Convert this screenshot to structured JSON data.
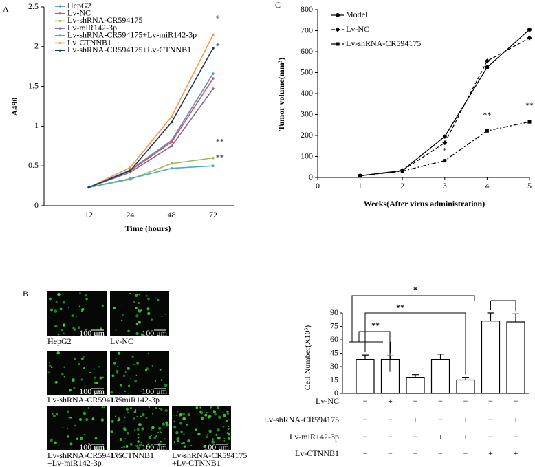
{
  "chart_data": [
    {
      "type": "line",
      "panel": "A",
      "x_label": "Time (hours)",
      "y_label": "A490",
      "categories": [
        "12",
        "24",
        "48",
        "72"
      ],
      "ylim": [
        0,
        2.5
      ],
      "yticks": [
        0,
        0.5,
        1,
        1.5,
        2,
        2.5
      ],
      "series": [
        {
          "name": "HepG2",
          "color": "#4a8fd4",
          "values": [
            0.23,
            0.45,
            0.82,
            1.66
          ]
        },
        {
          "name": "Lv-NC",
          "color": "#d9534f",
          "values": [
            0.23,
            0.44,
            0.8,
            1.6
          ]
        },
        {
          "name": "Lv-shRNA-CR594175",
          "color": "#9bbb59",
          "values": [
            0.23,
            0.33,
            0.53,
            0.6
          ]
        },
        {
          "name": "Lv-miR142-3p",
          "color": "#8064a2",
          "values": [
            0.23,
            0.42,
            0.75,
            1.47
          ]
        },
        {
          "name": "Lv-shRNA-CR594175+Lv-miR142-3p",
          "color": "#4bacc6",
          "values": [
            0.23,
            0.34,
            0.47,
            0.5
          ]
        },
        {
          "name": "Lv-CTNNB1",
          "color": "#f79646",
          "values": [
            0.23,
            0.48,
            1.12,
            2.15
          ]
        },
        {
          "name": "Lv-shRNA-CR594175+Lv-CTNNB1",
          "color": "#1f3864",
          "values": [
            0.23,
            0.44,
            1.05,
            1.98
          ]
        }
      ],
      "annotations": [
        {
          "text": "*",
          "x": "72",
          "y": 2.35
        },
        {
          "text": "*",
          "x": "72",
          "y": 2.0
        },
        {
          "text": "**",
          "x": "72",
          "y": 0.8
        },
        {
          "text": "**",
          "x": "72",
          "y": 0.6
        }
      ]
    },
    {
      "type": "line",
      "panel": "C",
      "x_label": "Weeks(After virus administration)",
      "y_label": "Tumor volume(mm³)",
      "x": [
        1,
        2,
        3,
        4,
        5
      ],
      "xlim": [
        0,
        5
      ],
      "xticks": [
        0,
        1,
        2,
        3,
        4,
        5
      ],
      "ylim": [
        0,
        800
      ],
      "yticks": [
        0,
        100,
        200,
        300,
        400,
        500,
        600,
        700,
        800
      ],
      "series": [
        {
          "name": "Model",
          "color": "#000000",
          "marker": "circle",
          "dash": "solid",
          "values": [
            8,
            33,
            195,
            525,
            705
          ]
        },
        {
          "name": "Lv-NC",
          "color": "#000000",
          "marker": "diamond",
          "dash": "dashed",
          "values": [
            8,
            33,
            165,
            555,
            665
          ]
        },
        {
          "name": "Lv-shRNA-CR594175",
          "color": "#000000",
          "marker": "square",
          "dash": "dashdot",
          "values": [
            8,
            30,
            80,
            222,
            265
          ]
        }
      ],
      "annotations": [
        {
          "text": "*",
          "x": 3,
          "y": 125
        },
        {
          "text": "**",
          "x": 4,
          "y": 295
        },
        {
          "text": "**",
          "x": 5,
          "y": 340
        }
      ]
    },
    {
      "type": "bar",
      "panel": "B",
      "y_label": "Cell Number(X10³)",
      "categories": [
        null,
        null,
        null,
        null,
        null,
        null,
        null
      ],
      "values": [
        38,
        38,
        18,
        38,
        15,
        81,
        80
      ],
      "errors": [
        5,
        4,
        3,
        6,
        3,
        9,
        9
      ],
      "color": "#ffffff",
      "ylim": [
        0,
        90
      ],
      "yticks": [
        0,
        15,
        30,
        45,
        60,
        75,
        90
      ],
      "significance": [
        "**",
        "**",
        "*"
      ],
      "treatments": [
        {
          "name": "Lv-NC",
          "signs": [
            "−",
            "+",
            "−",
            "−",
            "−",
            "−",
            "−"
          ]
        },
        {
          "name": "Lv-shRNA-CR594175",
          "signs": [
            "−",
            "−",
            "+",
            "−",
            "+",
            "−",
            "+"
          ]
        },
        {
          "name": "Lv-miR142-3p",
          "signs": [
            "−",
            "−",
            "−",
            "+",
            "+",
            "−",
            "−"
          ]
        },
        {
          "name": "Lv-CTNNB1",
          "signs": [
            "−",
            "−",
            "−",
            "−",
            "−",
            "+",
            "+"
          ]
        }
      ]
    }
  ],
  "images": {
    "panel": "B",
    "items": [
      {
        "caption": [
          "HepG2"
        ],
        "scale": "100 μm"
      },
      {
        "caption": [
          "Lv-NC"
        ],
        "scale": "100 μm"
      },
      {
        "caption": [
          "Lv-shRNA-CR594175"
        ],
        "scale": "100 μm"
      },
      {
        "caption": [
          "Lv-miR142-3p"
        ],
        "scale": "100 μm"
      },
      {
        "caption": [
          "Lv-shRNA-CR594175",
          "+Lv-miR142-3p"
        ],
        "scale": "100 μm"
      },
      {
        "caption": [
          "Lv-CTNNB1"
        ],
        "scale": "100 μm"
      },
      {
        "caption": [
          "Lv-shRNA-CR594175",
          "+Lv-CTNNB1"
        ],
        "scale": "100 μm"
      }
    ]
  }
}
